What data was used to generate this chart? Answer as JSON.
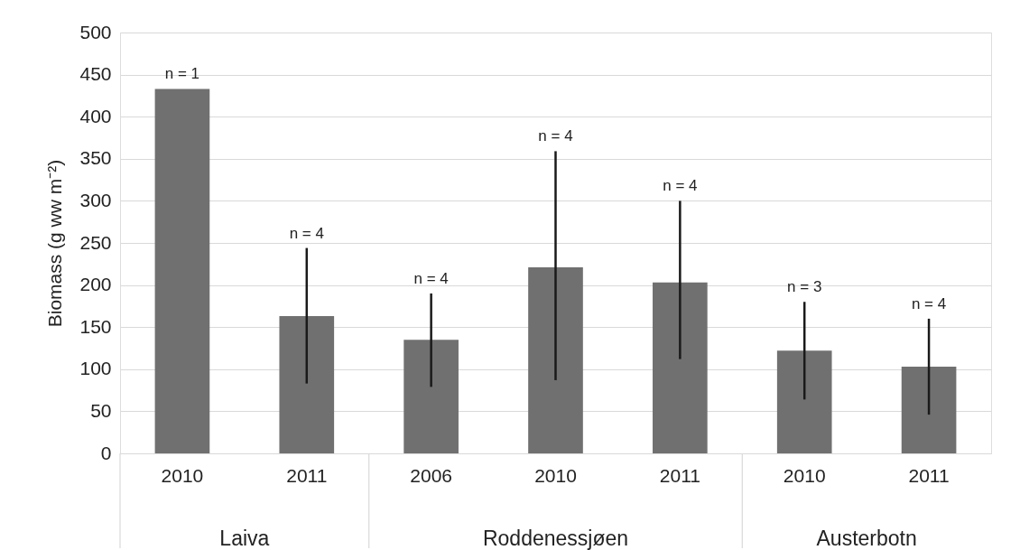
{
  "chart_data": {
    "type": "bar",
    "ylabel": "Biomass (g ww m⁻²)",
    "categories": [
      "2010",
      "2011",
      "2006",
      "2010",
      "2011",
      "2010",
      "2011"
    ],
    "values": [
      433,
      163,
      135,
      221,
      203,
      122,
      103
    ],
    "errors": [
      null,
      [
        83,
        244
      ],
      [
        79,
        190
      ],
      [
        87,
        359
      ],
      [
        112,
        300
      ],
      [
        64,
        180
      ],
      [
        46,
        160
      ]
    ],
    "color": "#717071",
    "annotations": [
      "n = 1",
      "n = 4",
      "n = 4",
      "n = 4",
      "n = 4",
      "n = 3",
      "n = 4",
      "Laiva",
      "Roddenessjøen",
      "Austerbotn"
    ],
    "ylim": [
      0,
      500
    ],
    "yticks": [
      0,
      50,
      100,
      150,
      200,
      250,
      300,
      350,
      400,
      450,
      500
    ],
    "grid": "y",
    "legend": false
  }
}
